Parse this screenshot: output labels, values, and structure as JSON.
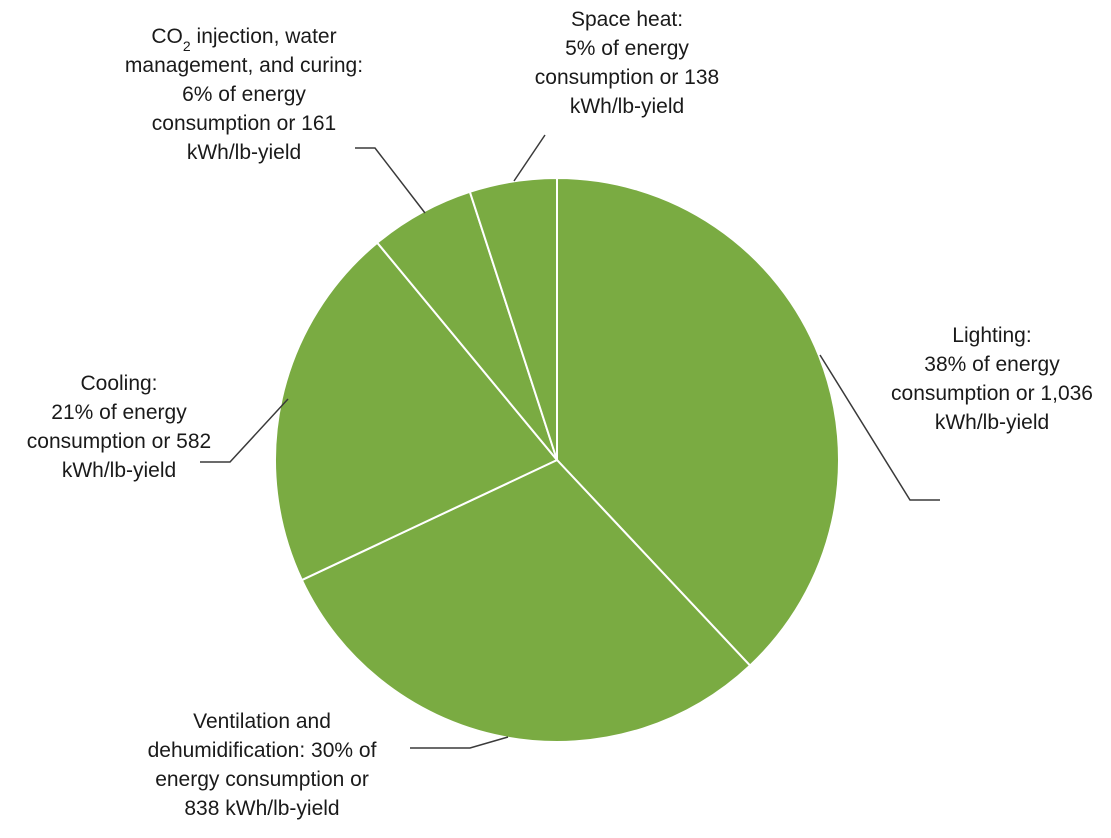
{
  "chart_data": {
    "type": "pie",
    "colors": {
      "slice": "#7aab42",
      "slice_border": "#ffffff",
      "leader": "#3a3a3a",
      "text": "#1a1a1a"
    },
    "slices": [
      {
        "name": "Lighting",
        "percent": 38,
        "kwh_per_lb_yield": 1036,
        "label": [
          "Lighting:",
          "38% of energy",
          "consumption or 1,036",
          "kWh/lb-yield"
        ]
      },
      {
        "name": "Ventilation and dehumidification",
        "percent": 30,
        "kwh_per_lb_yield": 838,
        "label": [
          "Ventilation and",
          "dehumidification: 30% of",
          "energy consumption or",
          "838 kWh/lb-yield"
        ]
      },
      {
        "name": "Cooling",
        "percent": 21,
        "kwh_per_lb_yield": 582,
        "label": [
          "Cooling:",
          "21% of energy",
          "consumption or 582",
          "kWh/lb-yield"
        ]
      },
      {
        "name": "CO2 injection, water management, and curing",
        "percent": 6,
        "kwh_per_lb_yield": 161,
        "label": [
          "CO2 injection, water",
          "management, and curing:",
          "6% of energy",
          "consumption or 161",
          "kWh/lb-yield"
        ]
      },
      {
        "name": "Space heat",
        "percent": 5,
        "kwh_per_lb_yield": 138,
        "label": [
          "Space heat:",
          "5% of energy",
          "consumption or 138",
          "kWh/lb-yield"
        ]
      }
    ]
  }
}
